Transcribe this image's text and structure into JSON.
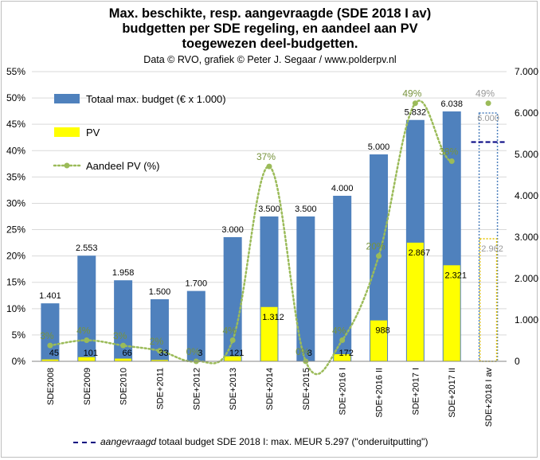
{
  "title_lines": [
    "Max. beschikte, resp. aangevraagde (SDE 2018 I av)",
    "budgetten per SDE regeling, en aandeel aan PV",
    "toegewezen deel-budgetten."
  ],
  "credit": "Data © RVO, grafiek © Peter J. Segaar / www.polderpv.nl",
  "footnote": {
    "italic": "aangevraagd",
    "rest": " totaal budget SDE 2018 I: max. MEUR 5.297 (\"onderuitputting\")"
  },
  "colors": {
    "budget": "#4f81bd",
    "pv": "#ffff00",
    "share": "#9bbb59",
    "requested_line": "#000080"
  },
  "chart_data": {
    "type": "bar",
    "categories": [
      "SDE2008",
      "SDE2009",
      "SDE2010",
      "SDE+2011",
      "SDE+2012",
      "SDE+2013",
      "SDE+2014",
      "SDE+2015",
      "SDE+2016 I",
      "SDE+2016 II",
      "SDE+2017 I",
      "SDE+2017 II",
      "SDE+2018 I av"
    ],
    "series": [
      {
        "name": "Totaal max. budget (€ x 1.000)",
        "axis": "right",
        "values": [
          1401,
          2553,
          1958,
          1500,
          1700,
          3000,
          3500,
          3500,
          4000,
          5000,
          5832,
          6038,
          6000
        ],
        "labels": [
          "1.401",
          "2.553",
          "1.958",
          "1.500",
          "1.700",
          "3.000",
          "3.500",
          "3.500",
          "4.000",
          "5.000",
          "5.832",
          "6.038",
          "6.000"
        ]
      },
      {
        "name": "PV",
        "axis": "right",
        "values": [
          45,
          101,
          66,
          33,
          3,
          121,
          1312,
          8,
          172,
          988,
          2867,
          2321,
          2962
        ],
        "labels": [
          "45",
          "101",
          "66",
          "33",
          "3",
          "121",
          "1.312",
          "8",
          "172",
          "988",
          "2.867",
          "2.321",
          "2.962"
        ]
      },
      {
        "name": "Aandeel PV (%)",
        "axis": "left",
        "type": "line",
        "values": [
          3,
          4,
          3,
          2,
          0,
          4,
          37,
          0,
          4,
          20,
          49,
          38,
          49
        ],
        "labels": [
          "3%",
          "4%",
          "3%",
          "2%",
          "0%",
          "4%",
          "37%",
          "0%",
          "4%",
          "20%",
          "49%",
          "38%",
          "49%"
        ]
      }
    ],
    "requested_budget": 5297,
    "y_left": {
      "min": 0,
      "max": 55,
      "step": 5,
      "tick_labels": [
        "0%",
        "5%",
        "10%",
        "15%",
        "20%",
        "25%",
        "30%",
        "35%",
        "40%",
        "45%",
        "50%",
        "55%"
      ]
    },
    "y_right": {
      "min": 0,
      "max": 7000,
      "step": 1000,
      "tick_labels": [
        "0",
        "1.000",
        "2.000",
        "3.000",
        "4.000",
        "5.000",
        "6.000",
        "7.000"
      ]
    },
    "legend_position": "top-left",
    "last_category_dashed": true
  }
}
